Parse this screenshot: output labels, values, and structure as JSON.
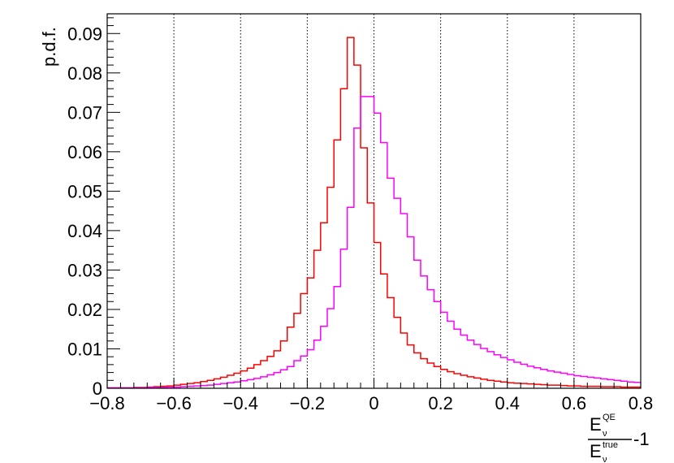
{
  "chart_data": {
    "type": "line",
    "step": true,
    "title": "",
    "ylabel": "p.d.f.",
    "xlabel": {
      "numerator": "E",
      "numerator_sup": "QE",
      "numerator_sub": "ν",
      "denominator": "E",
      "denominator_sup": "true",
      "denominator_sub": "ν",
      "suffix": "-1"
    },
    "xlim": [
      -0.8,
      0.8
    ],
    "ylim": [
      0,
      0.095
    ],
    "x_ticks": [
      -0.8,
      -0.6,
      -0.4,
      -0.2,
      0,
      0.2,
      0.4,
      0.6,
      0.8
    ],
    "x_tick_labels": [
      "−0.8",
      "−0.6",
      "−0.4",
      "−0.2",
      "0",
      "0.2",
      "0.4",
      "0.6",
      "0.8"
    ],
    "y_ticks": [
      0,
      0.01,
      0.02,
      0.03,
      0.04,
      0.05,
      0.06,
      0.07,
      0.08,
      0.09
    ],
    "y_tick_labels": [
      "0",
      "0.01",
      "0.02",
      "0.03",
      "0.04",
      "0.05",
      "0.06",
      "0.07",
      "0.08",
      "0.09"
    ],
    "vertical_grid": true,
    "grid_x": [
      -0.6,
      -0.4,
      -0.2,
      0,
      0.2,
      0.4,
      0.6
    ],
    "bin_width": 0.02,
    "series": [
      {
        "color": "#ff0000",
        "edges_start": -0.8,
        "values": [
          0.0001,
          0.0001,
          0.0001,
          0.0001,
          0.0002,
          0.0002,
          0.0003,
          0.0004,
          0.0005,
          0.0006,
          0.0008,
          0.001,
          0.0012,
          0.0014,
          0.0017,
          0.002,
          0.0024,
          0.0028,
          0.0033,
          0.0038,
          0.0044,
          0.0051,
          0.006,
          0.007,
          0.0081,
          0.0095,
          0.012,
          0.0155,
          0.019,
          0.024,
          0.028,
          0.035,
          0.042,
          0.051,
          0.063,
          0.076,
          0.089,
          0.082,
          0.061,
          0.047,
          0.037,
          0.029,
          0.023,
          0.018,
          0.014,
          0.011,
          0.009,
          0.0075,
          0.0064,
          0.0055,
          0.0048,
          0.0042,
          0.0037,
          0.0033,
          0.0029,
          0.0026,
          0.0023,
          0.002,
          0.0018,
          0.0016,
          0.0014,
          0.0013,
          0.0012,
          0.0011,
          0.001,
          0.0009,
          0.0008,
          0.0008,
          0.0007,
          0.0006,
          0.0006,
          0.0005,
          0.0005,
          0.0005,
          0.0004,
          0.0004,
          0.0004,
          0.0003,
          0.0003,
          0.0003
        ]
      },
      {
        "color": "#ff00ff",
        "edges_start": -0.8,
        "values": [
          0.0001,
          0.0001,
          0.0001,
          0.0001,
          0.0001,
          0.0001,
          0.0002,
          0.0002,
          0.0002,
          0.0003,
          0.0003,
          0.0004,
          0.0005,
          0.0006,
          0.0007,
          0.0008,
          0.001,
          0.0012,
          0.0014,
          0.0016,
          0.0019,
          0.0022,
          0.0025,
          0.0029,
          0.0034,
          0.004,
          0.0047,
          0.0055,
          0.007,
          0.0082,
          0.0098,
          0.0122,
          0.0157,
          0.0202,
          0.0258,
          0.0353,
          0.0459,
          0.066,
          0.074,
          0.074,
          0.0698,
          0.0623,
          0.0533,
          0.0482,
          0.0443,
          0.0384,
          0.0325,
          0.0285,
          0.025,
          0.022,
          0.0193,
          0.017,
          0.015,
          0.0135,
          0.0122,
          0.0111,
          0.0101,
          0.0093,
          0.0085,
          0.0078,
          0.0072,
          0.0066,
          0.0061,
          0.0056,
          0.0052,
          0.0048,
          0.0044,
          0.0041,
          0.0038,
          0.0035,
          0.0032,
          0.003,
          0.0028,
          0.0026,
          0.0024,
          0.0022,
          0.002,
          0.0018,
          0.0016,
          0.0015
        ]
      }
    ]
  }
}
